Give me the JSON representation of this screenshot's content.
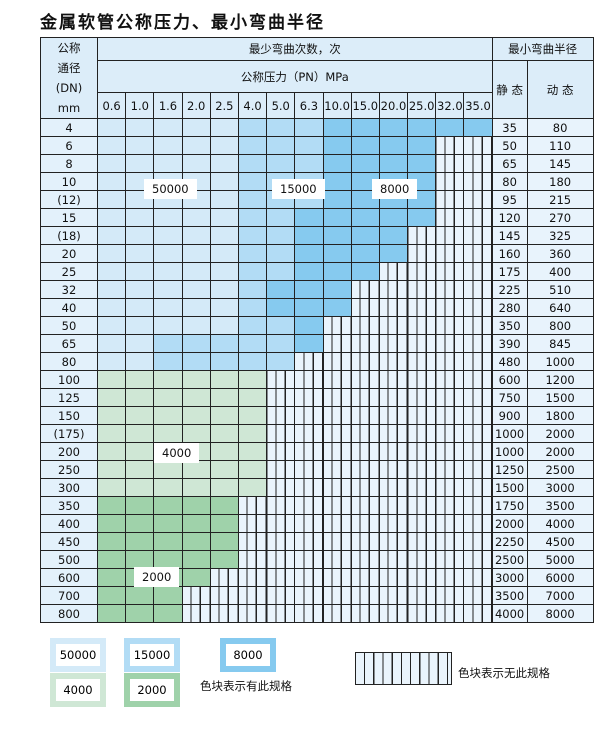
{
  "title": "金属软管公称压力、最小弯曲半径",
  "header": {
    "dn_label": [
      "公称",
      "通径",
      "(DN)",
      "mm"
    ],
    "cycles_label": "最少弯曲次数，次",
    "pressure_label": "公称压力（PN）MPa",
    "radius_label": "最小弯曲半径",
    "static_label": "静 态",
    "dynamic_label": "动 态",
    "pressures": [
      "0.6",
      "1.0",
      "1.6",
      "2.0",
      "2.5",
      "4.0",
      "5.0",
      "6.3",
      "10.0",
      "15.0",
      "20.0",
      "25.0",
      "32.0",
      "35.0"
    ]
  },
  "legend_codes": {
    "a": "50000",
    "b": "15000",
    "c": "8000",
    "d": "4000",
    "e": "2000",
    "x": "no spec"
  },
  "colors": {
    "a": "#d4eaf8",
    "b": "#b2dcf5",
    "c": "#86caef",
    "d": "#cfe7d5",
    "e": "#9fd2aa",
    "x": "#eaf4fc"
  },
  "rows": [
    {
      "dn": "4",
      "static": "35",
      "dynamic": "80",
      "cells": "aaaaabbbcccccc"
    },
    {
      "dn": "6",
      "static": "50",
      "dynamic": "110",
      "cells": "aaaaabbbccccxx"
    },
    {
      "dn": "8",
      "static": "65",
      "dynamic": "145",
      "cells": "aaaaabbbccccxx"
    },
    {
      "dn": "10",
      "static": "80",
      "dynamic": "180",
      "cells": "aaaaabbbccccxx"
    },
    {
      "dn": "(12)",
      "static": "95",
      "dynamic": "215",
      "cells": "aaaaabbbccccxx"
    },
    {
      "dn": "15",
      "static": "120",
      "dynamic": "270",
      "cells": "aaaaabbcccccxx"
    },
    {
      "dn": "(18)",
      "static": "145",
      "dynamic": "325",
      "cells": "aaaaabbccccxxx"
    },
    {
      "dn": "20",
      "static": "160",
      "dynamic": "360",
      "cells": "aaaaabbccccxxx"
    },
    {
      "dn": "25",
      "static": "175",
      "dynamic": "400",
      "cells": "aaaaabbcccxxxx"
    },
    {
      "dn": "32",
      "static": "225",
      "dynamic": "510",
      "cells": "aaaaabcccxxxxx"
    },
    {
      "dn": "40",
      "static": "280",
      "dynamic": "640",
      "cells": "aaaaabcccxxxxx"
    },
    {
      "dn": "50",
      "static": "350",
      "dynamic": "800",
      "cells": "aaaaabbcxxxxxx"
    },
    {
      "dn": "65",
      "static": "390",
      "dynamic": "845",
      "cells": "aabbbbbcxxxxxx"
    },
    {
      "dn": "80",
      "static": "480",
      "dynamic": "1000",
      "cells": "aabbbbbxxxxxxx"
    },
    {
      "dn": "100",
      "static": "600",
      "dynamic": "1200",
      "cells": "ddddddxxxxxxxx"
    },
    {
      "dn": "125",
      "static": "750",
      "dynamic": "1500",
      "cells": "ddddddxxxxxxxx"
    },
    {
      "dn": "150",
      "static": "900",
      "dynamic": "1800",
      "cells": "ddddddxxxxxxxx"
    },
    {
      "dn": "(175)",
      "static": "1000",
      "dynamic": "2000",
      "cells": "ddddddxxxxxxxx"
    },
    {
      "dn": "200",
      "static": "1000",
      "dynamic": "2000",
      "cells": "ddddddxxxxxxxx"
    },
    {
      "dn": "250",
      "static": "1250",
      "dynamic": "2500",
      "cells": "ddddddxxxxxxxx"
    },
    {
      "dn": "300",
      "static": "1500",
      "dynamic": "3000",
      "cells": "ddddddxxxxxxxx"
    },
    {
      "dn": "350",
      "static": "1750",
      "dynamic": "3500",
      "cells": "eeeeexxxxxxxxx"
    },
    {
      "dn": "400",
      "static": "2000",
      "dynamic": "4000",
      "cells": "eeeeexxxxxxxxx"
    },
    {
      "dn": "450",
      "static": "2250",
      "dynamic": "4500",
      "cells": "eeeeexxxxxxxxx"
    },
    {
      "dn": "500",
      "static": "2500",
      "dynamic": "5000",
      "cells": "eeeeexxxxxxxxx"
    },
    {
      "dn": "600",
      "static": "3000",
      "dynamic": "6000",
      "cells": "eeeexxxxxxxxxx"
    },
    {
      "dn": "700",
      "static": "3500",
      "dynamic": "7000",
      "cells": "eeexxxxxxxxxxx"
    },
    {
      "dn": "800",
      "static": "4000",
      "dynamic": "8000",
      "cells": "eeexxxxxxxxxxx"
    }
  ],
  "region_labels": {
    "a": "50000",
    "b": "15000",
    "c": "8000",
    "d": "4000",
    "e": "2000"
  },
  "legend": {
    "items": [
      "50000",
      "15000",
      "8000",
      "4000",
      "2000"
    ],
    "has_spec_text": "色块表示有此规格",
    "no_spec_text": "色块表示无此规格"
  }
}
